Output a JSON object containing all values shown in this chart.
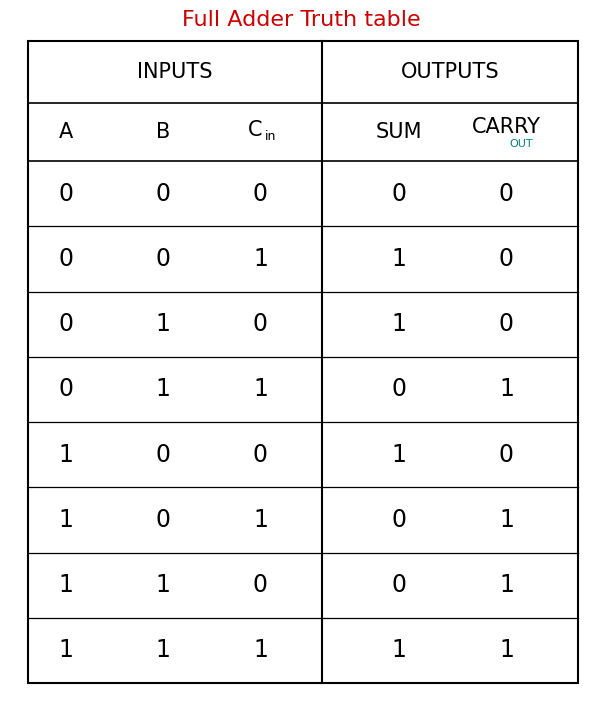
{
  "title": "Full Adder Truth table",
  "title_color": "#cc0000",
  "title_fontsize": 16,
  "inputs_label": "INPUTS",
  "outputs_label": "OUTPUTS",
  "bg_color": "#ffffff",
  "border_color": "#000000",
  "text_color": "#000000",
  "out_color": "#008080",
  "header_fontsize": 15,
  "data_fontsize": 17,
  "col_header_fontsize": 15,
  "data": [
    [
      0,
      0,
      0,
      0,
      0
    ],
    [
      0,
      0,
      1,
      1,
      0
    ],
    [
      0,
      1,
      0,
      1,
      0
    ],
    [
      0,
      1,
      1,
      0,
      1
    ],
    [
      1,
      0,
      0,
      1,
      0
    ],
    [
      1,
      0,
      1,
      0,
      1
    ],
    [
      1,
      1,
      0,
      0,
      1
    ],
    [
      1,
      1,
      1,
      1,
      1
    ]
  ]
}
